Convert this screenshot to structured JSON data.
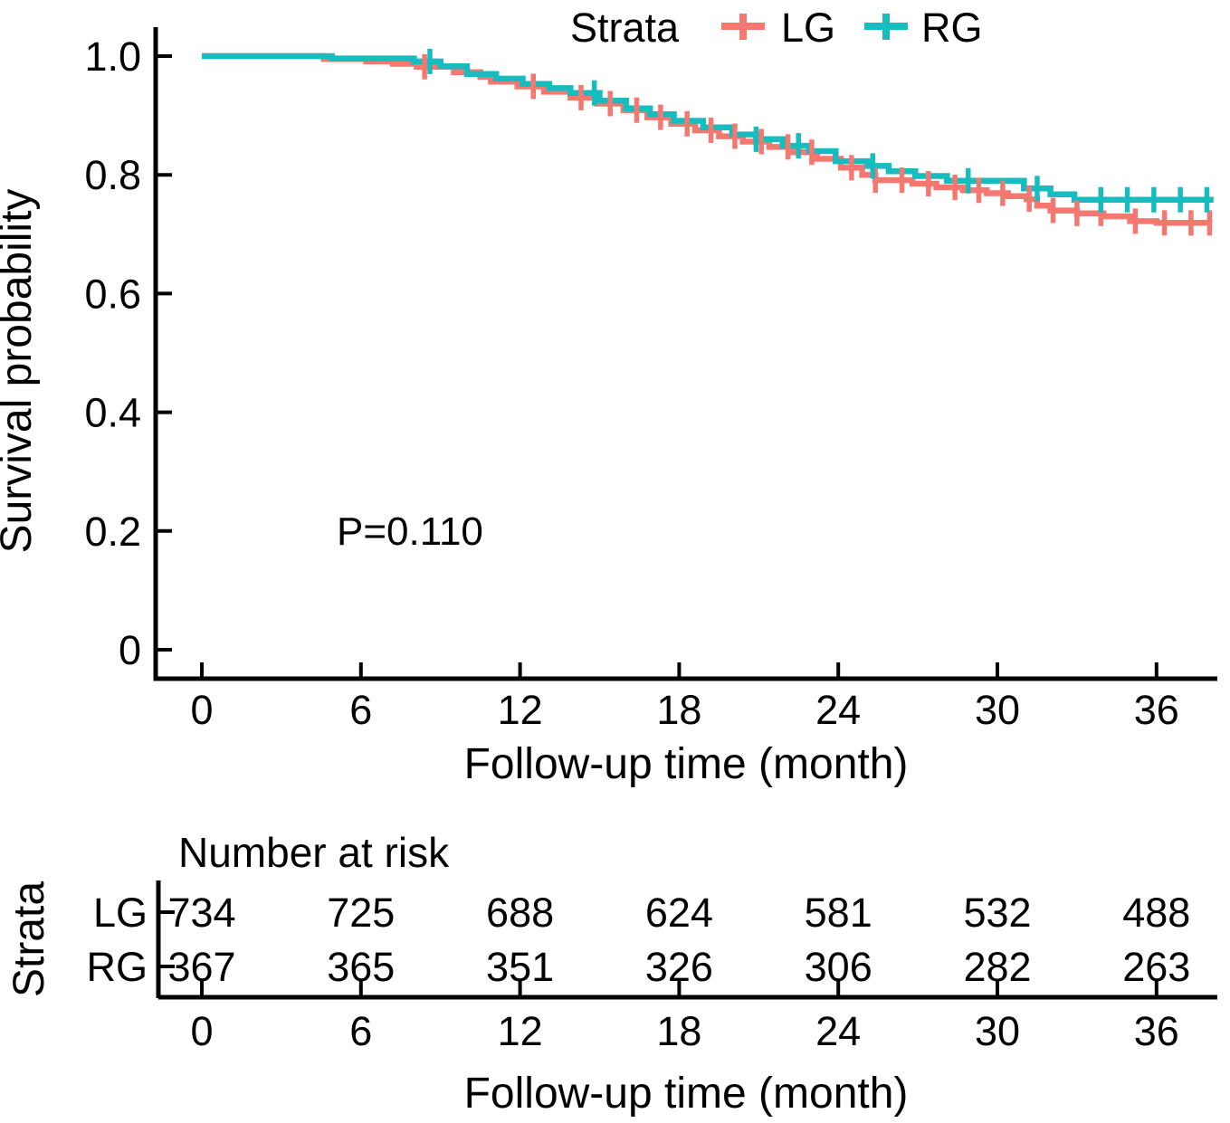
{
  "figure": {
    "legend": {
      "title": "Strata",
      "items": [
        {
          "label": "LG",
          "color": "#F4786F"
        },
        {
          "label": "RG",
          "color": "#17BCBF"
        }
      ]
    },
    "axes": {
      "x_title": "Follow-up time (month)",
      "y_title": "Survival probability"
    },
    "pvalue": "P=0.110",
    "risk_table": {
      "title": "Number at risk",
      "axis_label": "Strata",
      "x_title": "Follow-up time (month)",
      "rows": [
        {
          "label": "LG",
          "color": "#F4786F"
        },
        {
          "label": "RG",
          "color": "#17BCBF"
        }
      ]
    }
  },
  "chart_data": {
    "type": "line",
    "subtype": "kaplan-meier-survival-step",
    "title": "",
    "xlabel": "Follow-up time (month)",
    "ylabel": "Survival probability",
    "x_ticks": [
      0,
      6,
      12,
      18,
      24,
      30,
      36
    ],
    "x_tick_labels": [
      "0",
      "6",
      "12",
      "18",
      "24",
      "30",
      "36"
    ],
    "y_ticks": [
      0,
      0.2,
      0.4,
      0.6,
      0.8,
      1.0
    ],
    "y_tick_labels": [
      "0",
      "0.2",
      "0.4",
      "0.6",
      "0.8",
      "1.0"
    ],
    "xlim": [
      0,
      38.5
    ],
    "ylim": [
      0,
      1.0
    ],
    "grid": false,
    "legend_position": "top",
    "pvalue_text": "P=0.110",
    "series": [
      {
        "name": "LG",
        "color": "#F4786F",
        "end_time": 38.1,
        "points": [
          [
            0,
            1.0
          ],
          [
            4.6,
            0.995
          ],
          [
            6.2,
            0.991
          ],
          [
            7.2,
            0.987
          ],
          [
            8.1,
            0.982
          ],
          [
            9.5,
            0.973
          ],
          [
            10.5,
            0.965
          ],
          [
            10.9,
            0.957
          ],
          [
            11.9,
            0.949
          ],
          [
            12.9,
            0.94
          ],
          [
            13.9,
            0.93
          ],
          [
            14.9,
            0.92
          ],
          [
            15.9,
            0.909
          ],
          [
            16.8,
            0.897
          ],
          [
            17.7,
            0.886
          ],
          [
            18.6,
            0.875
          ],
          [
            19.5,
            0.865
          ],
          [
            20.4,
            0.856
          ],
          [
            21.4,
            0.847
          ],
          [
            22.3,
            0.838
          ],
          [
            23.2,
            0.827
          ],
          [
            24.1,
            0.812
          ],
          [
            24.9,
            0.8
          ],
          [
            25.4,
            0.791
          ],
          [
            26.8,
            0.785
          ],
          [
            27.7,
            0.779
          ],
          [
            28.7,
            0.774
          ],
          [
            29.6,
            0.769
          ],
          [
            30.4,
            0.764
          ],
          [
            31.1,
            0.759
          ],
          [
            31.5,
            0.748
          ],
          [
            32.0,
            0.74
          ],
          [
            33.0,
            0.735
          ],
          [
            34.0,
            0.73
          ],
          [
            35.0,
            0.722
          ],
          [
            36.0,
            0.719
          ]
        ],
        "censor_times": [
          8.4,
          12.5,
          14.3,
          15.4,
          16.4,
          17.3,
          18.3,
          19.2,
          20.1,
          21.1,
          22.1,
          23.0,
          24.5,
          25.4,
          26.4,
          27.4,
          28.4,
          29.3,
          30.2,
          31.2,
          32.1,
          33.0,
          33.9,
          35.2,
          36.3,
          37.3,
          38.0
        ]
      },
      {
        "name": "RG",
        "color": "#17BCBF",
        "end_time": 38.15,
        "points": [
          [
            0,
            1.0
          ],
          [
            4.9,
            0.996
          ],
          [
            8.0,
            0.991
          ],
          [
            9.0,
            0.983
          ],
          [
            10.0,
            0.97
          ],
          [
            11.1,
            0.962
          ],
          [
            12.1,
            0.953
          ],
          [
            13.1,
            0.946
          ],
          [
            13.9,
            0.938
          ],
          [
            15.0,
            0.925
          ],
          [
            16.0,
            0.912
          ],
          [
            16.9,
            0.902
          ],
          [
            17.8,
            0.891
          ],
          [
            18.9,
            0.88
          ],
          [
            20.0,
            0.868
          ],
          [
            20.9,
            0.86
          ],
          [
            21.9,
            0.849
          ],
          [
            22.9,
            0.84
          ],
          [
            23.9,
            0.823
          ],
          [
            25.1,
            0.815
          ],
          [
            25.9,
            0.806
          ],
          [
            26.9,
            0.798
          ],
          [
            28.1,
            0.79
          ],
          [
            31.0,
            0.777
          ],
          [
            32.0,
            0.767
          ],
          [
            32.9,
            0.758
          ]
        ],
        "censor_times": [
          8.6,
          14.8,
          20.9,
          22.5,
          25.3,
          28.9,
          31.5,
          33.9,
          34.9,
          35.9,
          36.9,
          37.9
        ]
      }
    ],
    "number_at_risk": {
      "times": [
        0,
        6,
        12,
        18,
        24,
        30,
        36
      ],
      "rows": [
        {
          "label": "LG",
          "color": "#F4786F",
          "counts": [
            734,
            725,
            688,
            624,
            581,
            532,
            488
          ]
        },
        {
          "label": "RG",
          "color": "#17BCBF",
          "counts": [
            367,
            365,
            351,
            326,
            306,
            282,
            263
          ]
        }
      ]
    }
  }
}
